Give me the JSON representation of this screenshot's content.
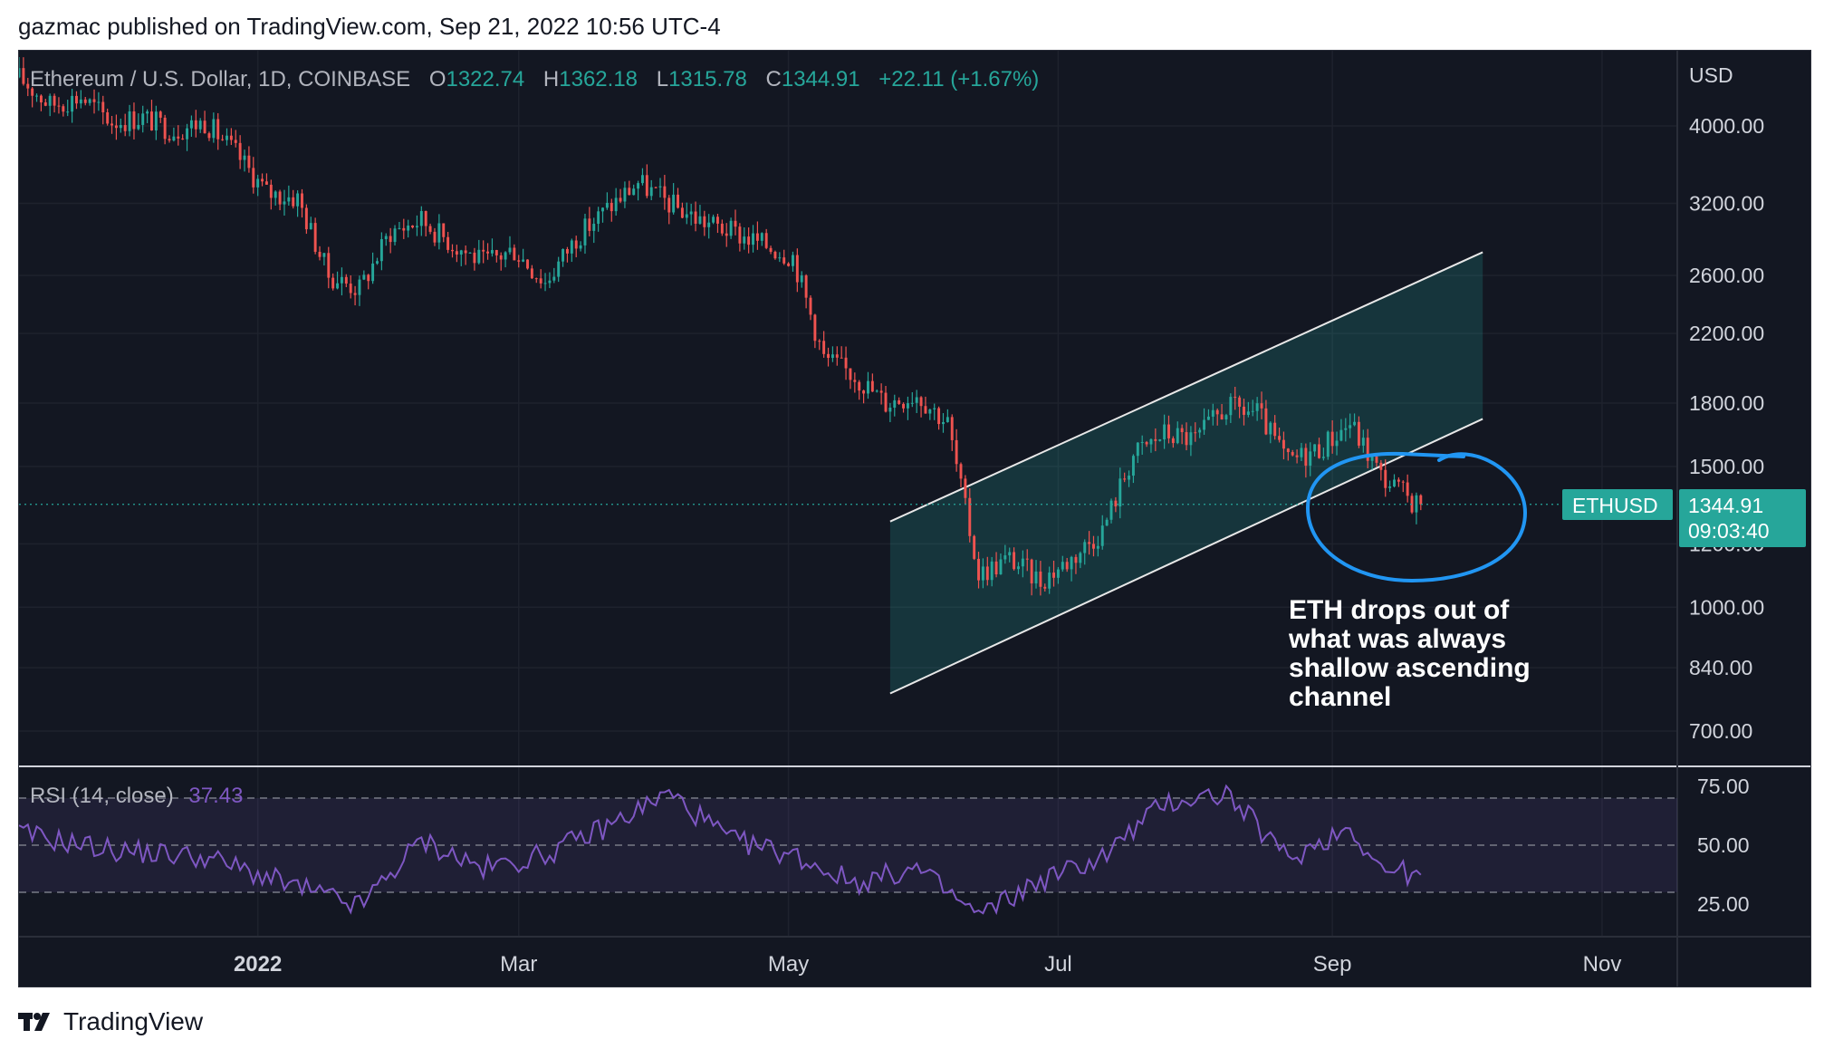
{
  "header": {
    "published": "gazmac published on TradingView.com, Sep 21, 2022 10:56 UTC-4"
  },
  "legend": {
    "symbol": "Ethereum / U.S. Dollar, 1D, COINBASE",
    "o_label": "O",
    "o_value": "1322.74",
    "h_label": "H",
    "h_value": "1362.18",
    "l_label": "L",
    "l_value": "1315.78",
    "c_label": "C",
    "c_value": "1344.91",
    "change": "+22.11 (+1.67%)"
  },
  "price_axis": {
    "unit": "USD",
    "ticks": [
      "4000.00",
      "3200.00",
      "2600.00",
      "2200.00",
      "1800.00",
      "1500.00",
      "1200.00",
      "1000.00",
      "840.00",
      "700.00"
    ]
  },
  "last_price": {
    "symbol_tag": "ETHUSD",
    "value": "1344.91",
    "countdown": "09:03:40"
  },
  "annotation": {
    "lines": [
      "ETH drops out of",
      "what was always",
      "shallow ascending",
      "channel"
    ]
  },
  "rsi": {
    "label": "RSI (14, close)",
    "value": "37.43",
    "ticks": [
      "75.00",
      "50.00",
      "25.00"
    ]
  },
  "time_axis": {
    "ticks": [
      "2022",
      "Mar",
      "May",
      "Jul",
      "Sep",
      "Nov"
    ]
  },
  "footer": {
    "brand": "TradingView"
  },
  "colors": {
    "background": "#131722",
    "up": "#26a69a",
    "down": "#ef5350",
    "rsi_line": "#7e57c2",
    "channel_fill": "#26a69a",
    "annotation_circle": "#2196f3"
  },
  "chart_data": [
    {
      "type": "candlestick",
      "title": "Ethereum / U.S. Dollar, 1D, COINBASE",
      "ylabel": "USD",
      "scale": "log",
      "ylim": [
        620,
        4600
      ],
      "x_range": [
        "2021-11-08",
        "2022-11-18"
      ],
      "x_ticks": [
        "2022",
        "Mar",
        "May",
        "Jul",
        "Sep",
        "Nov"
      ],
      "series": [
        {
          "name": "ETHUSD",
          "dates": [
            "2021-11-08",
            "2021-11-15",
            "2021-11-22",
            "2021-11-29",
            "2021-12-06",
            "2021-12-13",
            "2021-12-20",
            "2021-12-27",
            "2022-01-03",
            "2022-01-10",
            "2022-01-17",
            "2022-01-24",
            "2022-01-31",
            "2022-02-07",
            "2022-02-14",
            "2022-02-21",
            "2022-02-28",
            "2022-03-07",
            "2022-03-14",
            "2022-03-21",
            "2022-03-28",
            "2022-04-04",
            "2022-04-11",
            "2022-04-18",
            "2022-04-25",
            "2022-05-02",
            "2022-05-09",
            "2022-05-16",
            "2022-05-23",
            "2022-05-30",
            "2022-06-06",
            "2022-06-13",
            "2022-06-20",
            "2022-06-27",
            "2022-07-04",
            "2022-07-11",
            "2022-07-18",
            "2022-07-25",
            "2022-08-01",
            "2022-08-08",
            "2022-08-15",
            "2022-08-22",
            "2022-08-29",
            "2022-09-05",
            "2022-09-12",
            "2022-09-19",
            "2022-09-21"
          ],
          "close": [
            4600,
            4250,
            4350,
            4050,
            4100,
            3950,
            4050,
            3700,
            3300,
            3250,
            2600,
            2500,
            2950,
            3050,
            2850,
            2700,
            2800,
            2550,
            2900,
            3150,
            3400,
            3200,
            3050,
            2950,
            2850,
            2750,
            2050,
            1950,
            1800,
            1850,
            1700,
            1100,
            1150,
            1080,
            1150,
            1250,
            1550,
            1650,
            1620,
            1780,
            1750,
            1520,
            1580,
            1700,
            1460,
            1360,
            1344.91
          ]
        },
        {
          "name": "Ascending channel",
          "upper_line": [
            [
              "2022-05-24",
              1280
            ],
            [
              "2022-10-05",
              2780
            ]
          ],
          "lower_line": [
            [
              "2022-05-24",
              780
            ],
            [
              "2022-10-05",
              1720
            ]
          ]
        }
      ],
      "last_value": 1344.91
    },
    {
      "type": "line",
      "title": "RSI (14, close)",
      "ylim": [
        15,
        80
      ],
      "bands": [
        30,
        50,
        70
      ],
      "series": [
        {
          "name": "RSI",
          "dates": [
            "2021-11-08",
            "2021-11-29",
            "2021-12-20",
            "2022-01-10",
            "2022-01-24",
            "2022-02-07",
            "2022-02-21",
            "2022-03-07",
            "2022-03-21",
            "2022-04-04",
            "2022-04-18",
            "2022-05-02",
            "2022-05-16",
            "2022-05-30",
            "2022-06-13",
            "2022-06-27",
            "2022-07-11",
            "2022-07-25",
            "2022-08-08",
            "2022-08-22",
            "2022-09-05",
            "2022-09-12",
            "2022-09-21"
          ],
          "values": [
            55,
            48,
            45,
            32,
            24,
            52,
            40,
            46,
            58,
            72,
            52,
            46,
            34,
            40,
            20,
            35,
            45,
            68,
            72,
            44,
            58,
            40,
            37.43
          ]
        }
      ]
    }
  ]
}
